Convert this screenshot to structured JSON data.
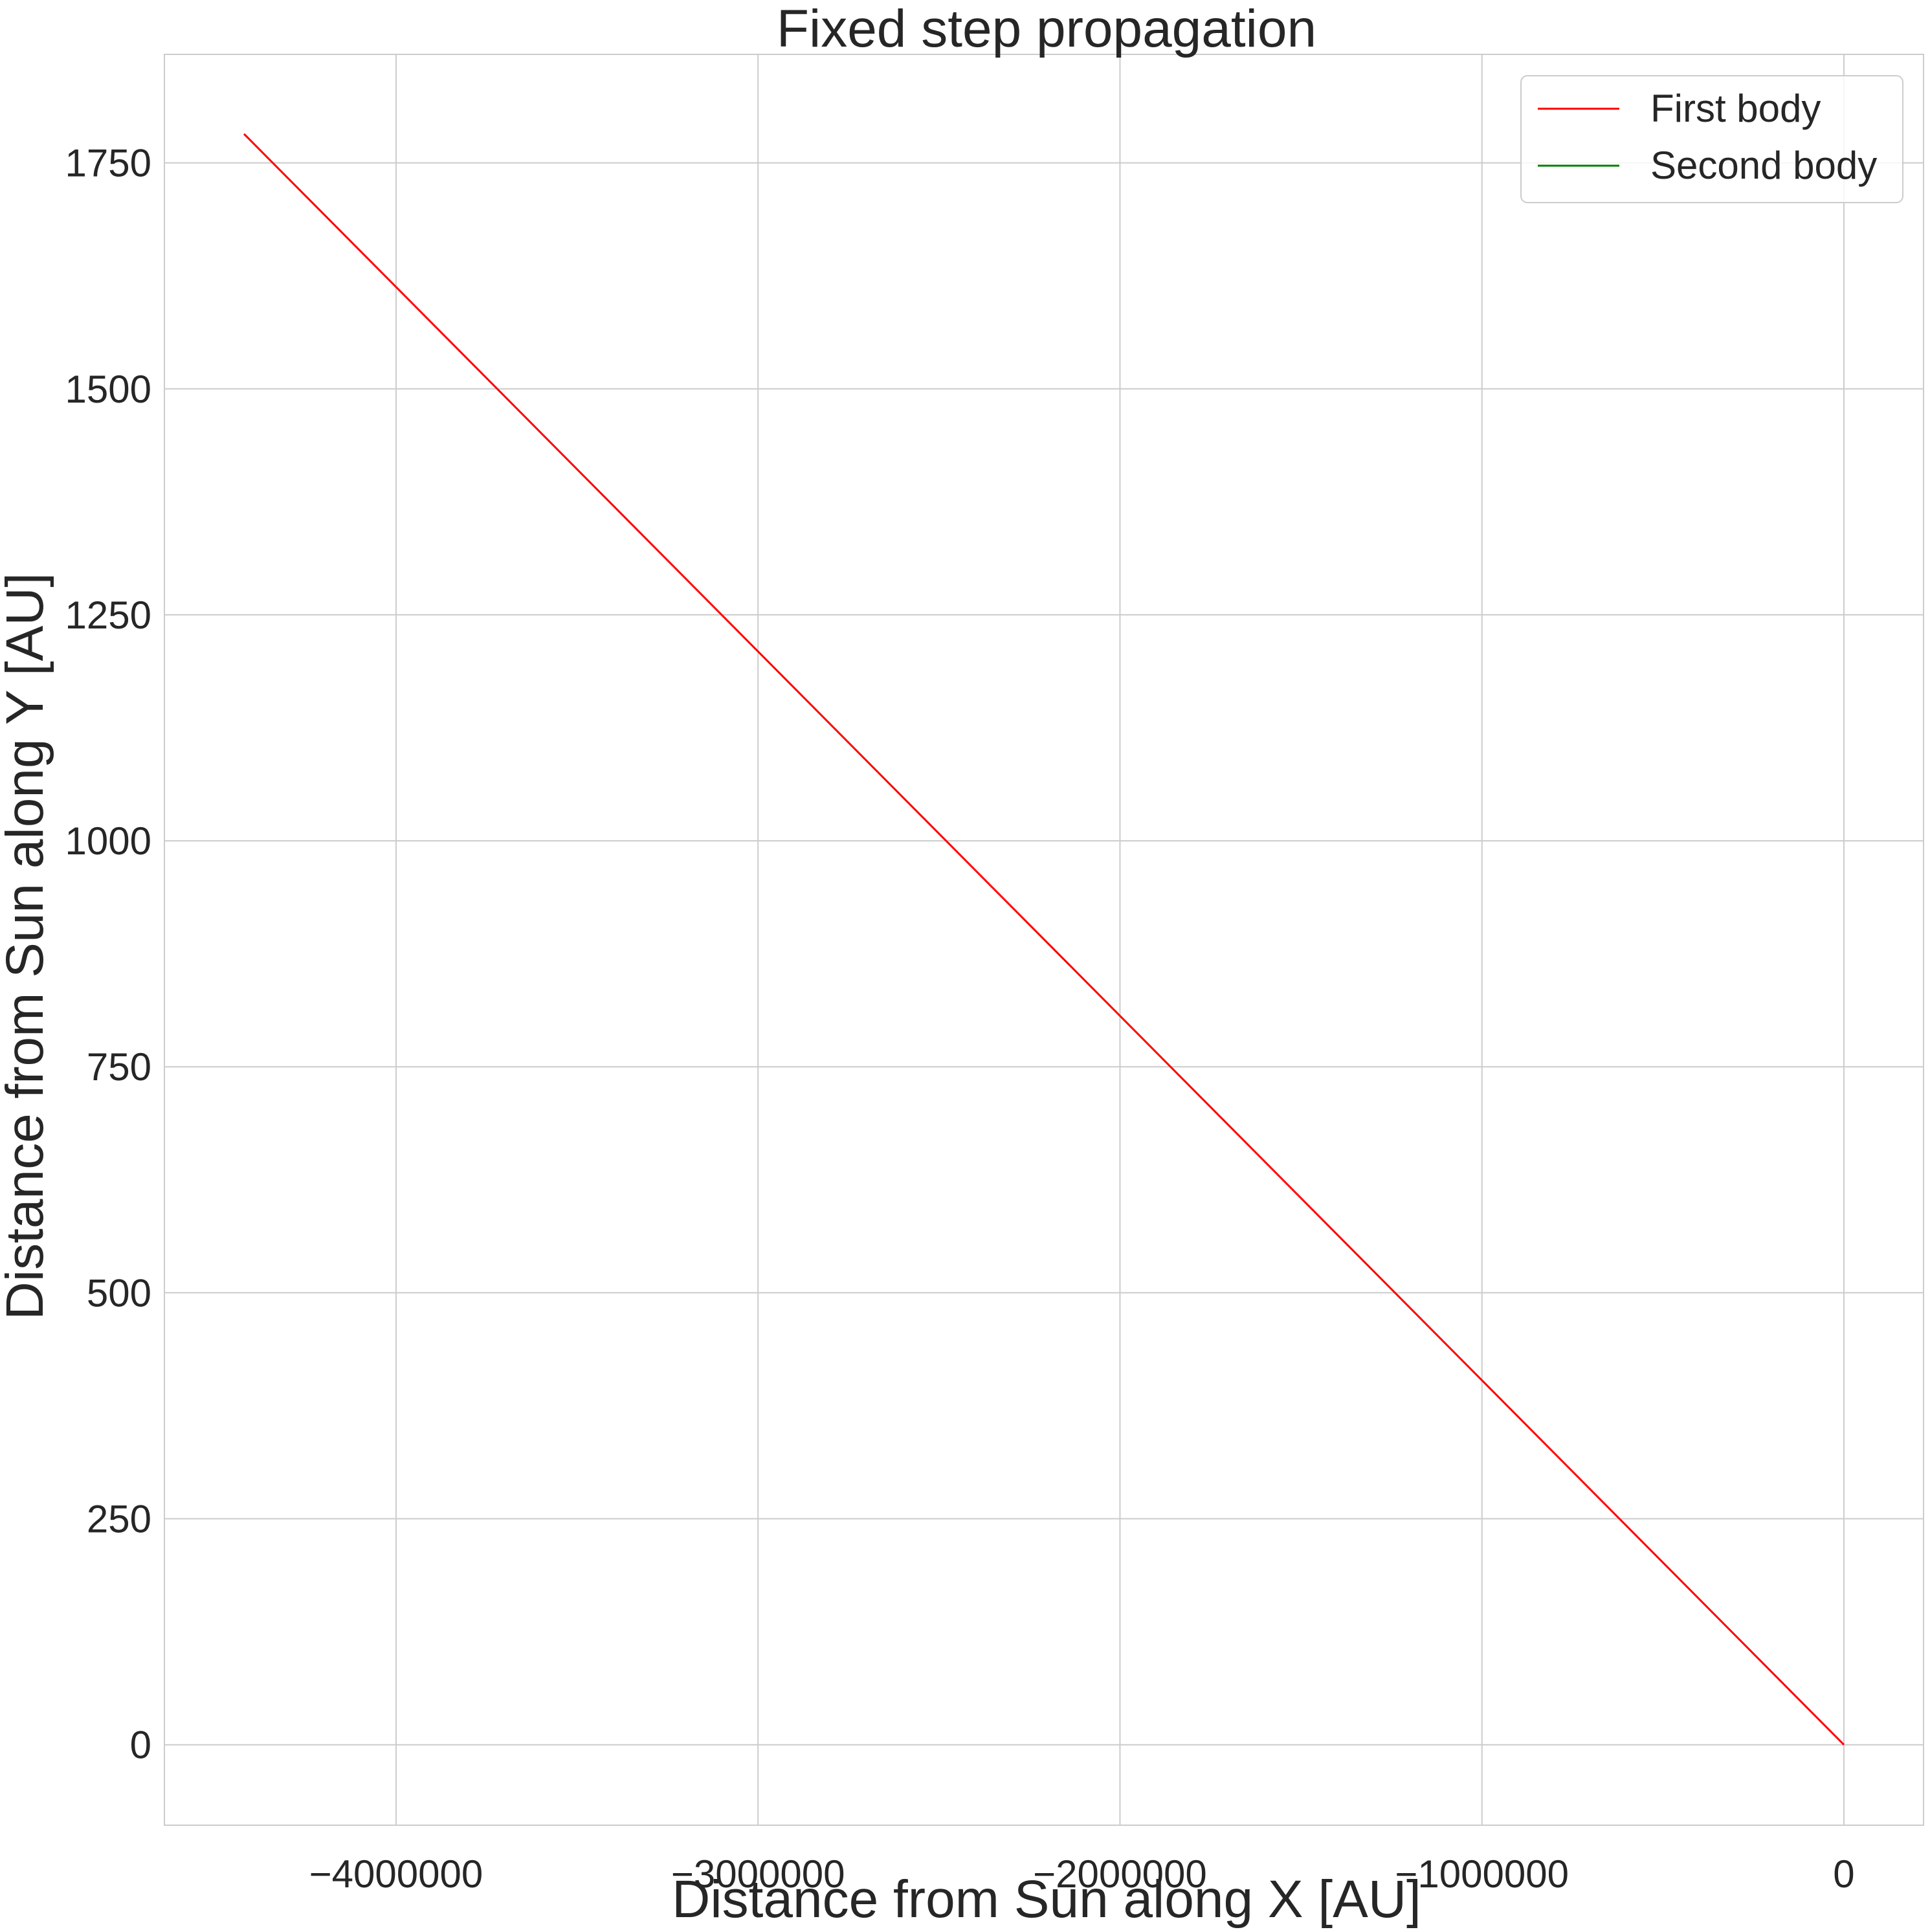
{
  "chart_data": {
    "type": "line",
    "title": "Fixed step propagation",
    "xlabel": "Distance from Sun along X [AU]",
    "ylabel": "Distance from Sun along Y [AU]",
    "xlim": [
      -4640000,
      220000
    ],
    "ylim": [
      -89,
      1870
    ],
    "xticks": [
      -4000000,
      -3000000,
      -2000000,
      -1000000,
      0
    ],
    "xtick_labels": [
      "−4000000",
      "−3000000",
      "−2000000",
      "−1000000",
      "0"
    ],
    "yticks": [
      0,
      250,
      500,
      750,
      1000,
      1250,
      1500,
      1750
    ],
    "ytick_labels": [
      "0",
      "250",
      "500",
      "750",
      "1000",
      "1250",
      "1500",
      "1750"
    ],
    "grid": true,
    "legend_position": "top-right",
    "series": [
      {
        "name": "First body",
        "color": "#ff0000",
        "x": [
          0,
          -4420000
        ],
        "y": [
          0,
          1782
        ]
      },
      {
        "name": "Second body",
        "color": "#008000",
        "x": [],
        "y": []
      }
    ]
  }
}
